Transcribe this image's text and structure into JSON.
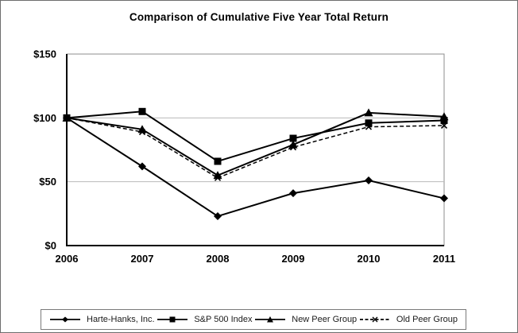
{
  "title": "Comparison of Cumulative Five Year Total Return",
  "colors": {
    "line": "#000000",
    "grid": "#b9b9b9",
    "plot_border": "#8c8c8c",
    "axis": "#000000",
    "background": "#ffffff"
  },
  "chart_data": {
    "type": "line",
    "title": "Comparison of Cumulative Five Year Total Return",
    "xlabel": "",
    "ylabel": "",
    "x_labels": [
      "2006",
      "2007",
      "2008",
      "2009",
      "2010",
      "2011"
    ],
    "ylim": [
      0,
      150
    ],
    "y_ticks": [
      0,
      50,
      100,
      150
    ],
    "y_tick_labels": [
      "$0",
      "$50",
      "$100",
      "$150"
    ],
    "grid": "horizontal",
    "legend_position": "bottom",
    "series": [
      {
        "name": "Harte-Hanks, Inc.",
        "marker": "diamond",
        "line": "solid",
        "color": "#000000",
        "values": [
          100,
          62,
          23,
          41,
          51,
          37
        ]
      },
      {
        "name": "S&P 500 Index",
        "marker": "square",
        "line": "solid",
        "color": "#000000",
        "values": [
          100,
          105,
          66,
          84,
          96,
          98
        ]
      },
      {
        "name": "New Peer Group",
        "marker": "triangle",
        "line": "solid",
        "color": "#000000",
        "values": [
          100,
          91,
          55,
          79,
          104,
          101
        ]
      },
      {
        "name": "Old Peer Group",
        "marker": "x",
        "line": "dashed",
        "color": "#000000",
        "values": [
          100,
          89,
          53,
          77,
          93,
          94
        ]
      }
    ]
  }
}
